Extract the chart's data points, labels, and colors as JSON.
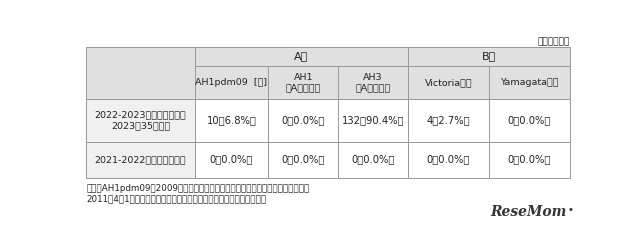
{
  "unit_text": "（単位：件）",
  "col_headers_row1_a": "A型",
  "col_headers_row1_b": "B型",
  "col_headers_row2": [
    "AH1pdm09  [注]",
    "AH1\n（Aソ連型）",
    "AH3\n（A香港型）",
    "Victoria系統",
    "Yamagata系統"
  ],
  "data_rows": [
    [
      "2022-2023年シーズン累計\n2023年35週まで",
      "10（6.8%）",
      "0（0.0%）",
      "132（90.4%）",
      "4（2.7%）",
      "0（0.0%）"
    ],
    [
      "2021-2022年シーズン累計",
      "0（0.0%）",
      "0（0.0%）",
      "0（0.0%）",
      "0（0.0%）",
      "0（0.0%）"
    ]
  ],
  "footnote1": "【注】AH1pdm09：2009年に新型インフルエンザと呼ばれて流行したウイルス。",
  "footnote2": "2011年4月1日から季節性インフルエンザとして位置づけられている。",
  "bg_color": "#ffffff",
  "header_bg": "#e0e0e0",
  "row1_bg": "#f0f0f0",
  "white": "#ffffff",
  "border_color": "#999999",
  "text_color": "#222222",
  "resemom_color": "#444444"
}
